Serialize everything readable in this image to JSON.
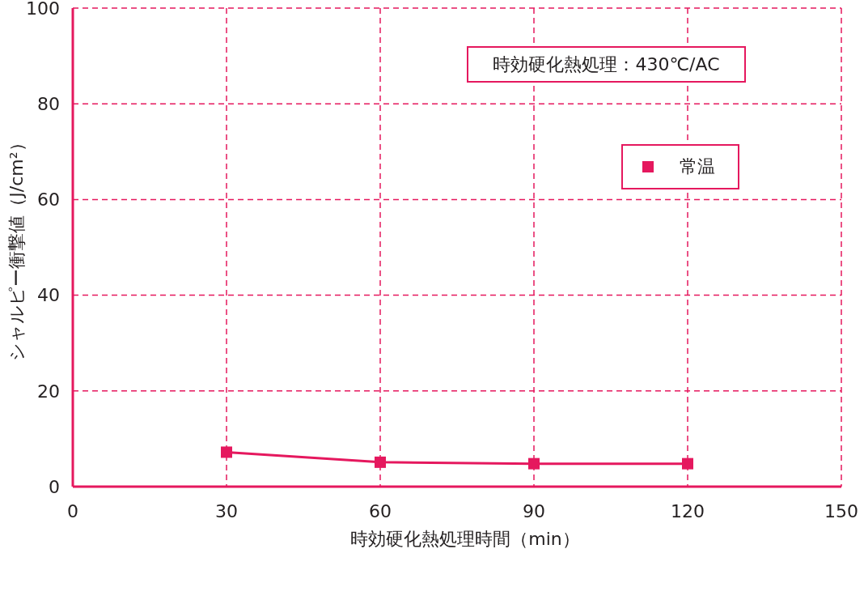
{
  "chart_data": {
    "type": "line",
    "xlabel": "時効硬化熱処理時間（min）",
    "ylabel": "シャルピー衝撃値（J/cm²）",
    "annotations": [
      "時効硬化熱処理：430℃/AC"
    ],
    "x": [
      30,
      60,
      90,
      120
    ],
    "series": [
      {
        "name": "常温",
        "color": "#e5185e",
        "values": [
          7.2,
          5.1,
          4.8,
          4.8
        ]
      }
    ],
    "xlim": [
      0,
      150
    ],
    "xticks": [
      0,
      30,
      60,
      90,
      120,
      150
    ],
    "ylim": [
      0,
      100
    ],
    "yticks": [
      0,
      20,
      40,
      60,
      80,
      100
    ],
    "grid": true,
    "legend": "top right",
    "marker": "square",
    "line_style": "solid"
  }
}
